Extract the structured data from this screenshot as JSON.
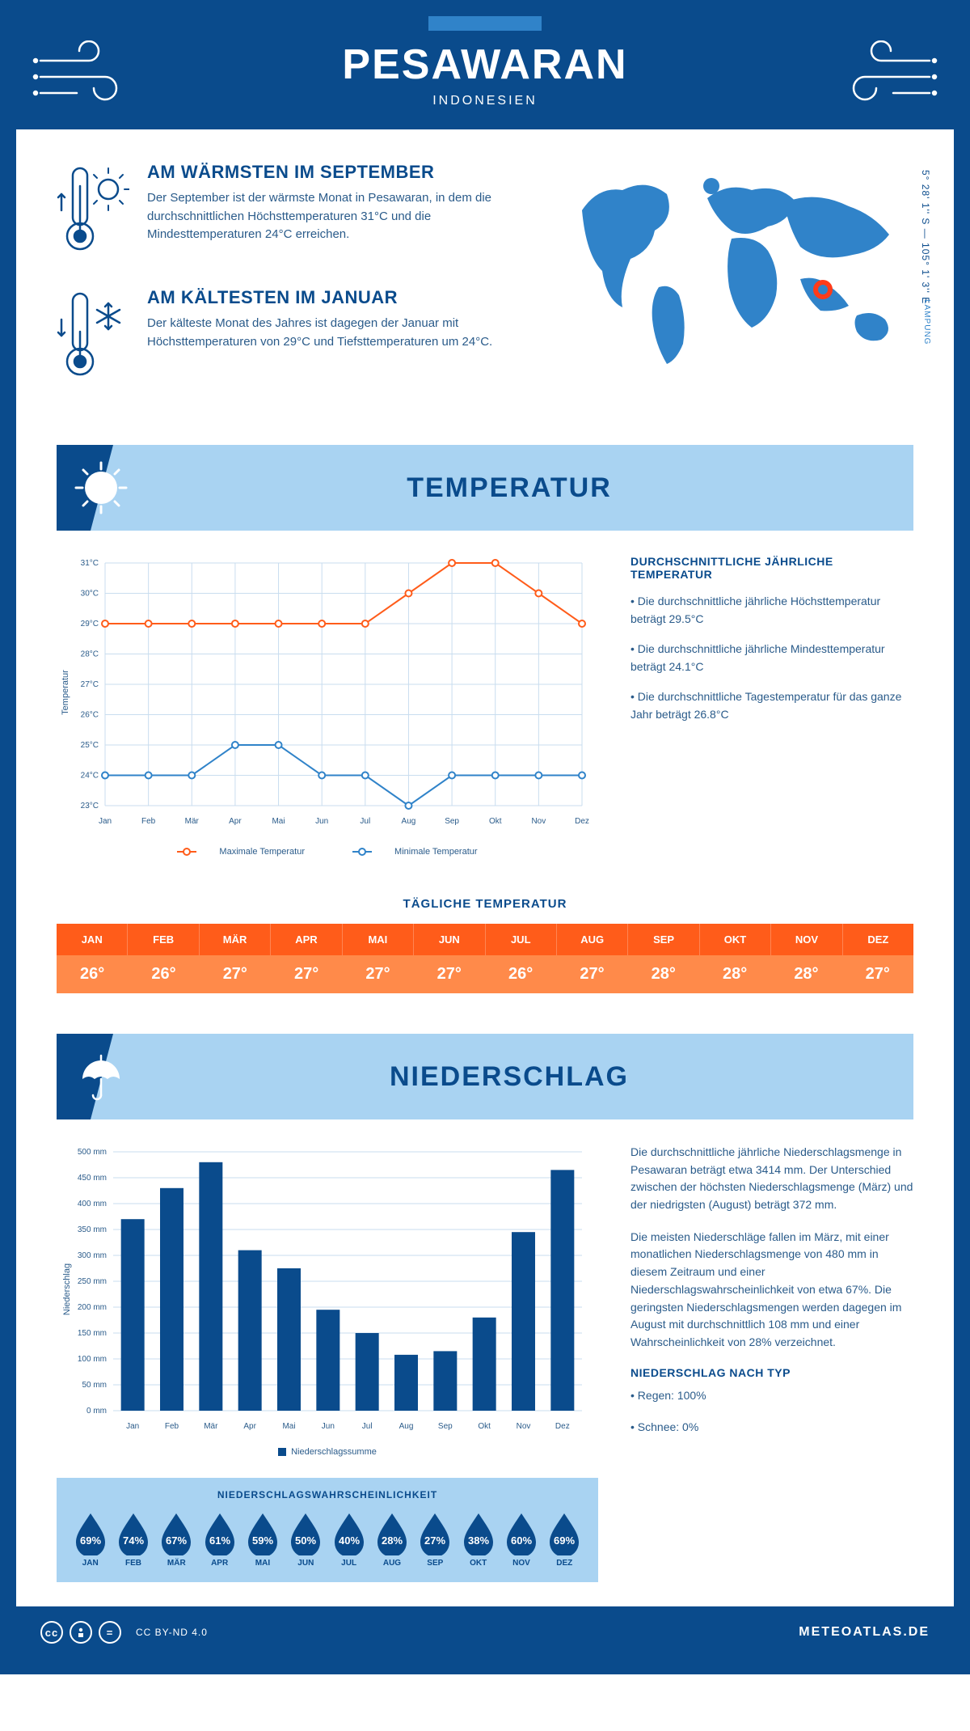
{
  "header": {
    "title": "PESAWARAN",
    "subtitle": "INDONESIEN",
    "coords": "5° 28' 1'' S — 105° 1' 3'' E",
    "region": "LAMPUNG"
  },
  "facts": {
    "warm": {
      "title": "AM WÄRMSTEN IM SEPTEMBER",
      "text": "Der September ist der wärmste Monat in Pesawaran, in dem die durchschnittlichen Höchsttemperaturen 31°C und die Mindesttemperaturen 24°C erreichen."
    },
    "cold": {
      "title": "AM KÄLTESTEN IM JANUAR",
      "text": "Der kälteste Monat des Jahres ist dagegen der Januar mit Höchsttemperaturen von 29°C und Tiefsttemperaturen um 24°C."
    }
  },
  "sections": {
    "temperature": "TEMPERATUR",
    "precipitation": "NIEDERSCHLAG"
  },
  "temp_chart": {
    "type": "line",
    "months": [
      "Jan",
      "Feb",
      "Mär",
      "Apr",
      "Mai",
      "Jun",
      "Jul",
      "Aug",
      "Sep",
      "Okt",
      "Nov",
      "Dez"
    ],
    "max_values": [
      29,
      29,
      29,
      29,
      29,
      29,
      29,
      30,
      31,
      31,
      30,
      29
    ],
    "min_values": [
      24,
      24,
      24,
      25,
      25,
      24,
      24,
      23,
      24,
      24,
      24,
      24
    ],
    "ylim": [
      23,
      31
    ],
    "ytick_step": 1,
    "ylabel": "Temperatur",
    "yunit": "°C",
    "max_color": "#ff5c1a",
    "min_color": "#3083c9",
    "grid_color": "#c9ddef",
    "background_color": "#ffffff",
    "legend_max": "Maximale Temperatur",
    "legend_min": "Minimale Temperatur",
    "marker": "circle-open"
  },
  "temp_stats": {
    "heading": "DURCHSCHNITTLICHE JÄHRLICHE TEMPERATUR",
    "bullets": [
      "• Die durchschnittliche jährliche Höchsttemperatur beträgt 29.5°C",
      "• Die durchschnittliche jährliche Mindesttemperatur beträgt 24.1°C",
      "• Die durchschnittliche Tagestemperatur für das ganze Jahr beträgt 26.8°C"
    ]
  },
  "daily_temp": {
    "title": "TÄGLICHE TEMPERATUR",
    "months": [
      "JAN",
      "FEB",
      "MÄR",
      "APR",
      "MAI",
      "JUN",
      "JUL",
      "AUG",
      "SEP",
      "OKT",
      "NOV",
      "DEZ"
    ],
    "values": [
      "26°",
      "26°",
      "27°",
      "27°",
      "27°",
      "27°",
      "26°",
      "27°",
      "28°",
      "28°",
      "28°",
      "27°"
    ],
    "header_bg": "#ff5c1a",
    "value_bg": "#ff8a4a",
    "text_color": "#ffffff"
  },
  "precip_chart": {
    "type": "bar",
    "months": [
      "Jan",
      "Feb",
      "Mär",
      "Apr",
      "Mai",
      "Jun",
      "Jul",
      "Aug",
      "Sep",
      "Okt",
      "Nov",
      "Dez"
    ],
    "values": [
      370,
      430,
      480,
      310,
      275,
      195,
      150,
      108,
      115,
      180,
      345,
      465
    ],
    "ylim": [
      0,
      500
    ],
    "ytick_step": 50,
    "ylabel": "Niederschlag",
    "yunit": " mm",
    "bar_color": "#0a4b8c",
    "grid_color": "#c9ddef",
    "legend": "Niederschlagssumme",
    "bar_width": 0.6
  },
  "precip_text": {
    "p1": "Die durchschnittliche jährliche Niederschlagsmenge in Pesawaran beträgt etwa 3414 mm. Der Unterschied zwischen der höchsten Niederschlagsmenge (März) und der niedrigsten (August) beträgt 372 mm.",
    "p2": "Die meisten Niederschläge fallen im März, mit einer monatlichen Niederschlagsmenge von 480 mm in diesem Zeitraum und einer Niederschlagswahrscheinlichkeit von etwa 67%. Die geringsten Niederschlagsmengen werden dagegen im August mit durchschnittlich 108 mm und einer Wahrscheinlichkeit von 28% verzeichnet.",
    "type_heading": "NIEDERSCHLAG NACH TYP",
    "type_lines": [
      "• Regen: 100%",
      "• Schnee: 0%"
    ]
  },
  "precip_prob": {
    "title": "NIEDERSCHLAGSWAHRSCHEINLICHKEIT",
    "months": [
      "JAN",
      "FEB",
      "MÄR",
      "APR",
      "MAI",
      "JUN",
      "JUL",
      "AUG",
      "SEP",
      "OKT",
      "NOV",
      "DEZ"
    ],
    "values": [
      "69%",
      "74%",
      "67%",
      "61%",
      "59%",
      "50%",
      "40%",
      "28%",
      "27%",
      "38%",
      "60%",
      "69%"
    ],
    "drop_color": "#0a4b8c",
    "box_bg": "#a9d3f2"
  },
  "footer": {
    "license": "CC BY-ND 4.0",
    "site": "METEOATLAS.DE"
  },
  "colors": {
    "primary": "#0a4b8c",
    "light": "#a9d3f2",
    "mid": "#3083c9",
    "orange": "#ff5c1a"
  }
}
